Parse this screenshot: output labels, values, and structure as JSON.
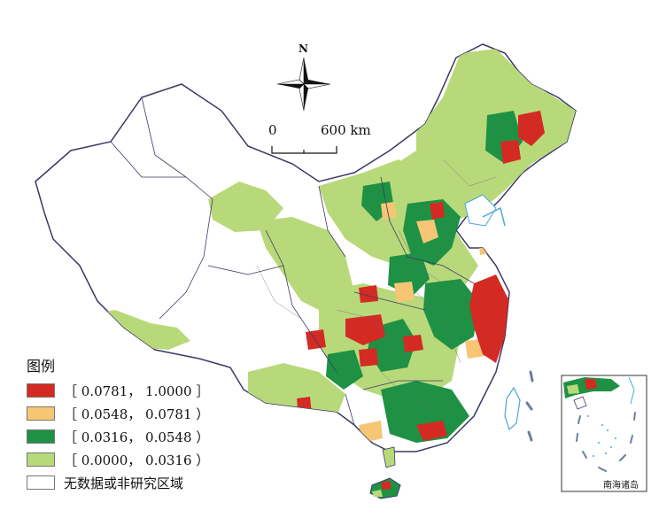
{
  "map": {
    "legend_title": "图例",
    "legend": [
      {
        "label": "［ 0.0781， 1.0000 ］",
        "color": "#d42a24"
      },
      {
        "label": "［ 0.0548， 0.0781 ）",
        "color": "#f6c674"
      },
      {
        "label": "［ 0.0316， 0.0548 ）",
        "color": "#1e9144"
      },
      {
        "label": "［ 0.0000， 0.0316 ）",
        "color": "#b8d97a"
      },
      {
        "label": "无数据或非研究区域",
        "color": "#ffffff"
      }
    ],
    "north_label": "N",
    "scale_zero": "0",
    "scale_max": "600 km",
    "inset_label": "南海诸岛",
    "colors": {
      "outline": "#3a3a66",
      "no_data": "#ffffff",
      "sea": "#4aa7d8"
    }
  }
}
